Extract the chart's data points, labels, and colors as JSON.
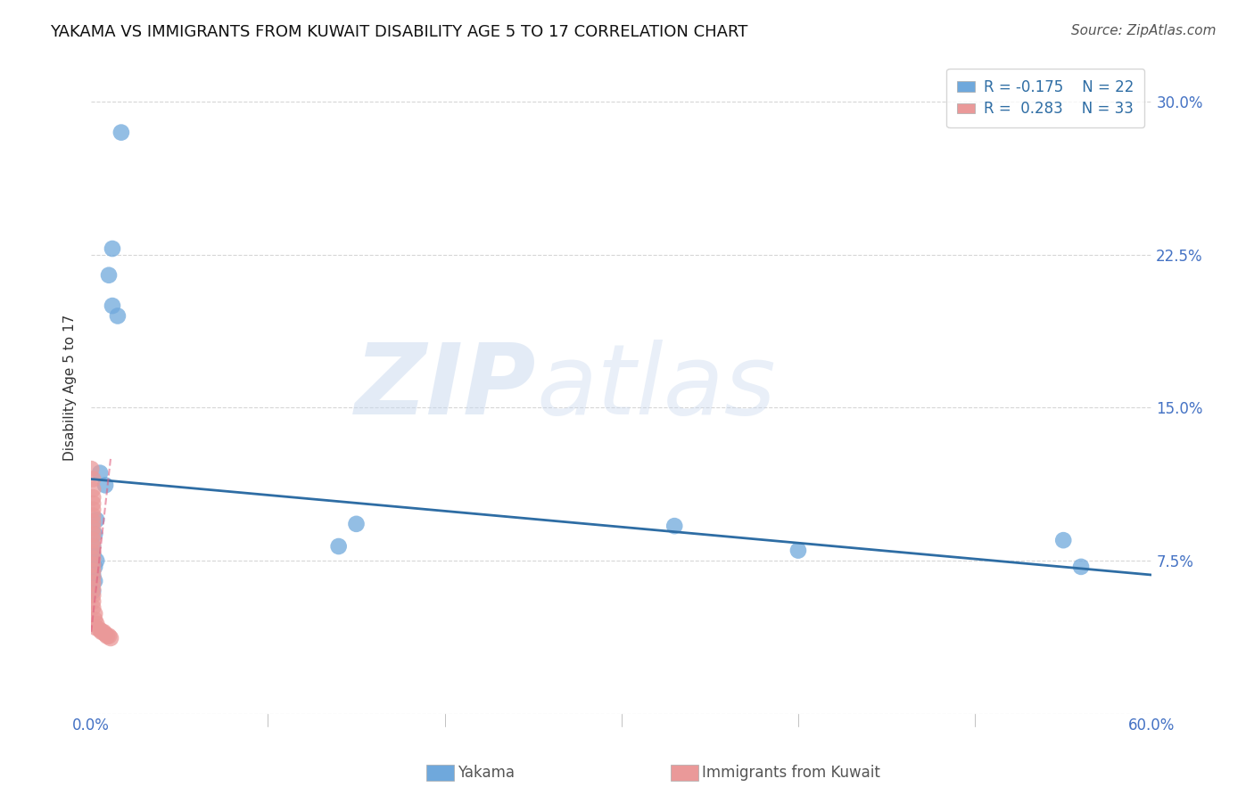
{
  "title": "YAKAMA VS IMMIGRANTS FROM KUWAIT DISABILITY AGE 5 TO 17 CORRELATION CHART",
  "source": "Source: ZipAtlas.com",
  "ylabel": "Disability Age 5 to 17",
  "xlim": [
    0.0,
    0.6
  ],
  "ylim": [
    0.0,
    0.32
  ],
  "xticks": [
    0.0,
    0.1,
    0.2,
    0.3,
    0.4,
    0.5,
    0.6
  ],
  "xticklabels": [
    "0.0%",
    "",
    "",
    "",
    "",
    "",
    "60.0%"
  ],
  "yticks": [
    0.0,
    0.075,
    0.15,
    0.225,
    0.3
  ],
  "yticklabels": [
    "",
    "7.5%",
    "15.0%",
    "22.5%",
    "30.0%"
  ],
  "watermark_zip": "ZIP",
  "watermark_atlas": "atlas",
  "legend_labels": [
    "Yakama",
    "Immigrants from Kuwait"
  ],
  "blue_color": "#6fa8dc",
  "pink_color": "#ea9999",
  "trendline_blue_color": "#2e6da4",
  "trendline_pink_color": "#e06080",
  "blue_scatter": [
    [
      0.017,
      0.285
    ],
    [
      0.015,
      0.195
    ],
    [
      0.012,
      0.228
    ],
    [
      0.01,
      0.215
    ],
    [
      0.012,
      0.2
    ],
    [
      0.005,
      0.118
    ],
    [
      0.008,
      0.112
    ],
    [
      0.003,
      0.095
    ],
    [
      0.002,
      0.088
    ],
    [
      0.001,
      0.082
    ],
    [
      0.001,
      0.078
    ],
    [
      0.003,
      0.075
    ],
    [
      0.002,
      0.072
    ],
    [
      0.001,
      0.068
    ],
    [
      0.002,
      0.065
    ],
    [
      0.001,
      0.06
    ],
    [
      0.15,
      0.093
    ],
    [
      0.14,
      0.082
    ],
    [
      0.33,
      0.092
    ],
    [
      0.4,
      0.08
    ],
    [
      0.55,
      0.085
    ],
    [
      0.56,
      0.072
    ]
  ],
  "pink_scatter": [
    [
      0.0,
      0.12
    ],
    [
      0.001,
      0.115
    ],
    [
      0.001,
      0.11
    ],
    [
      0.001,
      0.106
    ],
    [
      0.001,
      0.103
    ],
    [
      0.001,
      0.1
    ],
    [
      0.001,
      0.097
    ],
    [
      0.001,
      0.094
    ],
    [
      0.001,
      0.091
    ],
    [
      0.001,
      0.088
    ],
    [
      0.001,
      0.085
    ],
    [
      0.001,
      0.082
    ],
    [
      0.001,
      0.079
    ],
    [
      0.001,
      0.076
    ],
    [
      0.001,
      0.073
    ],
    [
      0.001,
      0.07
    ],
    [
      0.001,
      0.067
    ],
    [
      0.001,
      0.064
    ],
    [
      0.001,
      0.061
    ],
    [
      0.001,
      0.058
    ],
    [
      0.001,
      0.055
    ],
    [
      0.001,
      0.052
    ],
    [
      0.002,
      0.049
    ],
    [
      0.002,
      0.046
    ],
    [
      0.003,
      0.044
    ],
    [
      0.003,
      0.042
    ],
    [
      0.005,
      0.041
    ],
    [
      0.006,
      0.04
    ],
    [
      0.007,
      0.04
    ],
    [
      0.008,
      0.039
    ],
    [
      0.009,
      0.038
    ],
    [
      0.01,
      0.038
    ],
    [
      0.011,
      0.037
    ]
  ],
  "blue_trend_x": [
    0.0,
    0.6
  ],
  "blue_trend_y": [
    0.115,
    0.068
  ],
  "pink_trend_x": [
    0.0,
    0.011
  ],
  "pink_trend_y": [
    0.04,
    0.125
  ],
  "grid_color": "#cccccc",
  "background_color": "#ffffff",
  "tick_color": "#4472c4",
  "label_color": "#333333"
}
